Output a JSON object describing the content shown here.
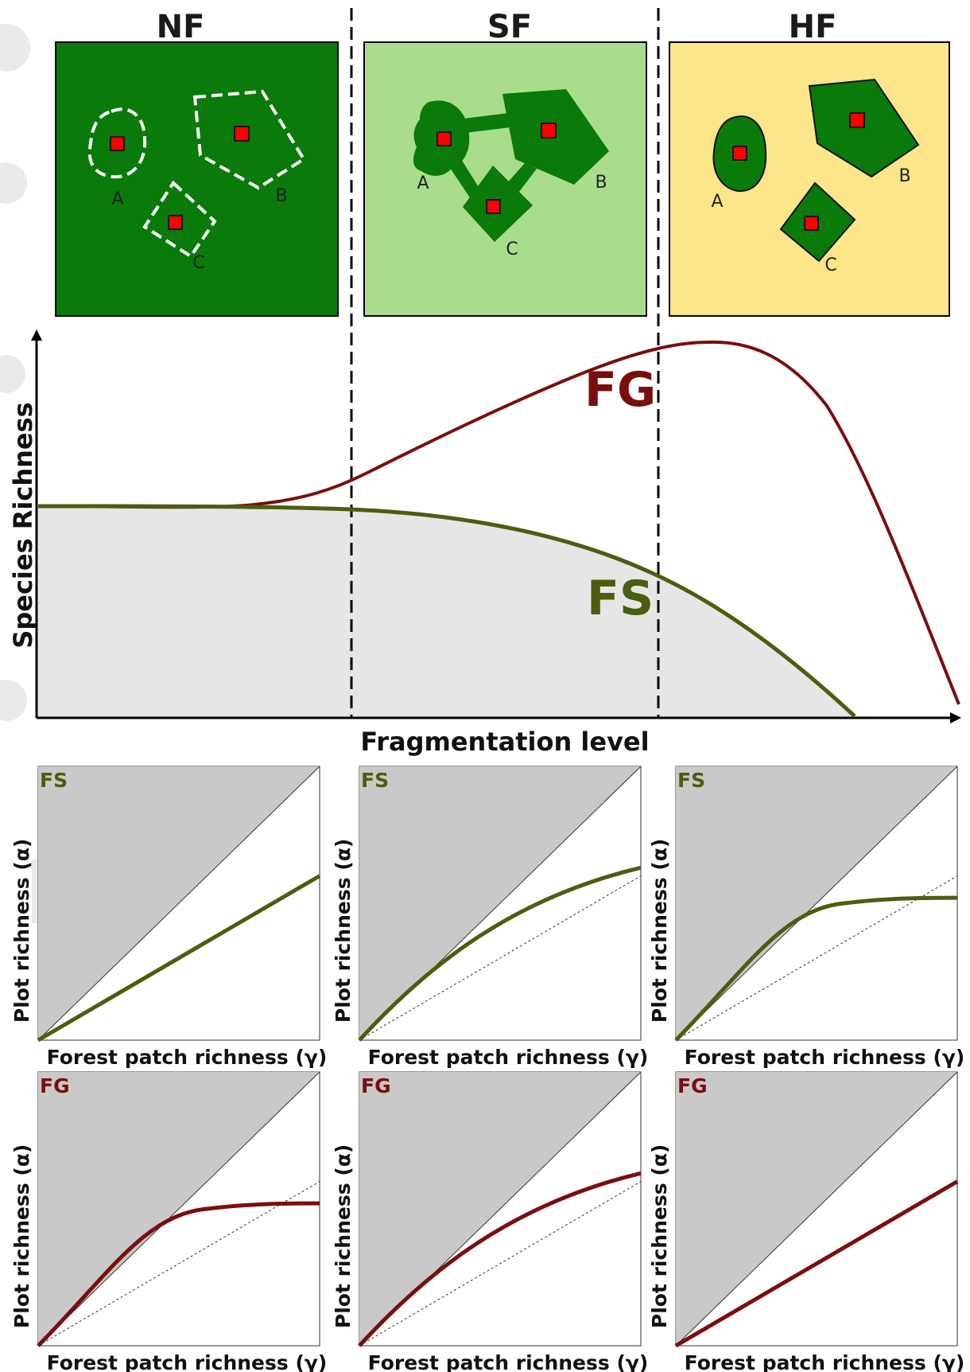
{
  "colors": {
    "forest_dark": "#0a7a0a",
    "forest_light": "#a9dd8b",
    "forest_yellow": "#fde58a",
    "fs_green": "#4a5e0f",
    "fg_red": "#7a0e0e",
    "shade_gray": "#c9c9c9",
    "area_fill": "#e6e6e6",
    "plot_square": "#ff0000"
  },
  "top_panels": [
    {
      "title": "NF",
      "background": "forest_light_none",
      "patch_style": "dashed-outline",
      "patches": [
        "A",
        "B",
        "C"
      ]
    },
    {
      "title": "SF",
      "patch_style": "connected-forest",
      "patches": [
        "A",
        "B",
        "C"
      ]
    },
    {
      "title": "HF",
      "patch_style": "isolated-forest",
      "patches": [
        "A",
        "B",
        "C"
      ]
    }
  ],
  "main_chart": {
    "y_label": "Species Richness",
    "x_label": "Fragmentation level",
    "fg_label": "FG",
    "fs_label": "FS"
  },
  "small_plots": {
    "x_label": "Forest patch richness (γ)",
    "y_label": "Plot richness (α)",
    "rows": [
      {
        "tag": "FS",
        "curves": [
          "linear",
          "slight-saturation",
          "strong-saturation"
        ]
      },
      {
        "tag": "FG",
        "curves": [
          "strong-saturation",
          "slight-saturation",
          "linear"
        ]
      }
    ]
  }
}
